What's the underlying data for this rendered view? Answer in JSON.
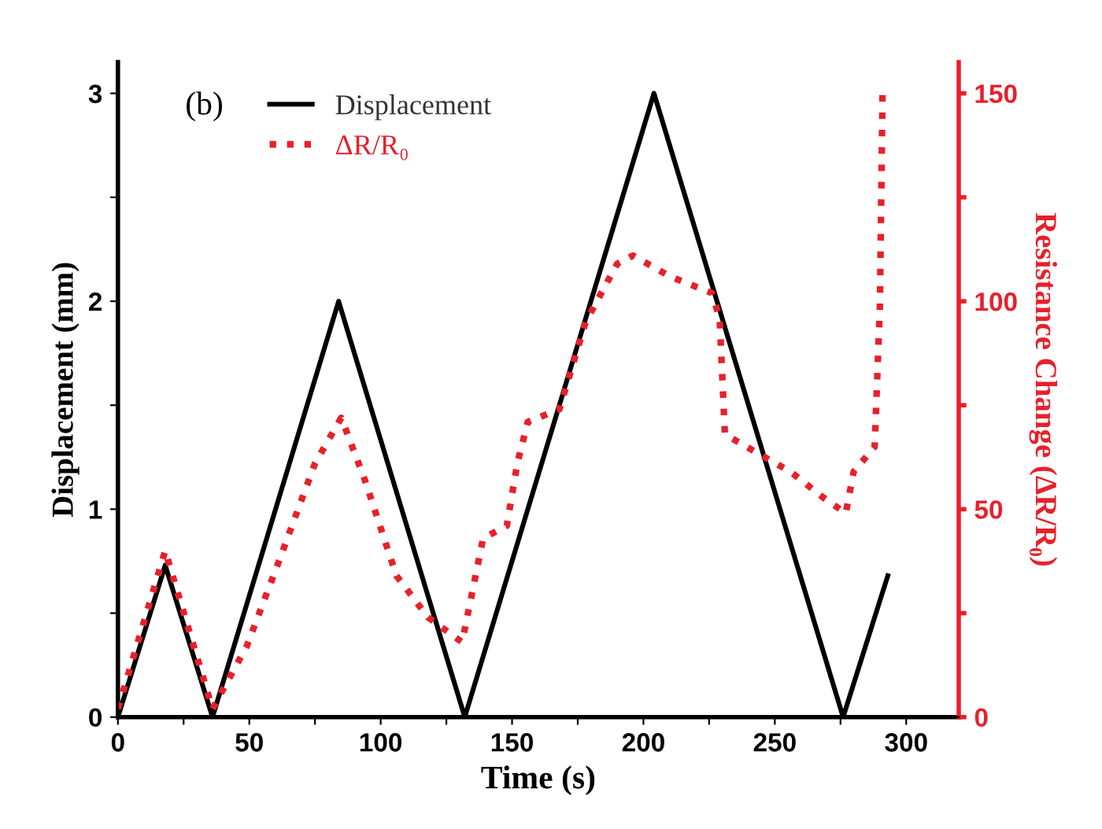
{
  "chart_data": {
    "type": "line",
    "xlabel": "Time (s)",
    "ylabel": "Displacement (mm)",
    "y2label": "Resistance Change (ΔR/R₀)",
    "annotations": [
      "(b)"
    ],
    "xlim": [
      0,
      320
    ],
    "xticks": [
      0,
      {
        "value": 25,
        "label": null
      },
      50,
      {
        "value": 75,
        "label": null
      },
      100,
      {
        "value": 125,
        "label": null
      },
      150,
      {
        "value": 175,
        "label": null
      },
      200,
      {
        "value": 225,
        "label": null
      },
      250,
      {
        "value": 275,
        "label": null
      },
      300
    ],
    "ylim": [
      0,
      3.15
    ],
    "yticks": [
      0,
      {
        "value": 0.5,
        "label": null
      },
      1,
      {
        "value": 1.5,
        "label": null
      },
      2,
      {
        "value": 2.5,
        "label": null
      },
      3
    ],
    "y2lim": [
      0,
      157.5
    ],
    "y2ticks": [
      0,
      {
        "value": 25,
        "label": null
      },
      50,
      {
        "value": 75,
        "label": null
      },
      100,
      {
        "value": 125,
        "label": null
      },
      150
    ],
    "legend": "top left",
    "grid": false,
    "series": [
      {
        "name": "Displacement",
        "color": "#000000",
        "line_style": "solid",
        "x": [
          0,
          18,
          36,
          84,
          132,
          204,
          276,
          293
        ],
        "values": [
          0,
          0.73,
          0,
          2,
          0,
          3,
          0,
          0.68
        ]
      },
      {
        "name": "ΔR/R₀",
        "color": "#e8202a",
        "line_style": "dotted",
        "axis": "y2",
        "x": [
          0,
          18,
          36,
          49,
          61,
          75,
          85,
          94,
          106,
          118,
          131,
          139,
          148,
          152,
          156,
          168,
          178,
          190,
          196,
          210,
          226,
          229,
          231,
          242,
          256,
          268,
          277,
          280,
          288,
          290,
          291
        ],
        "values": [
          2,
          40,
          2,
          17,
          37,
          61,
          72,
          57,
          34,
          24,
          18,
          43,
          46,
          61,
          71,
          74,
          95,
          109,
          111,
          106,
          102,
          96,
          68,
          64,
          59,
          53,
          49,
          59,
          65,
          99,
          150
        ]
      }
    ]
  }
}
